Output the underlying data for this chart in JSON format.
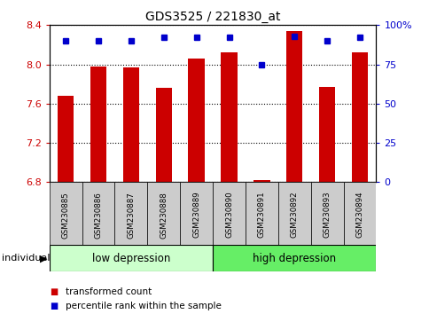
{
  "title": "GDS3525 / 221830_at",
  "samples": [
    "GSM230885",
    "GSM230886",
    "GSM230887",
    "GSM230888",
    "GSM230889",
    "GSM230890",
    "GSM230891",
    "GSM230892",
    "GSM230893",
    "GSM230894"
  ],
  "transformed_counts": [
    7.68,
    7.98,
    7.97,
    7.76,
    8.06,
    8.12,
    6.82,
    8.34,
    7.77,
    8.12
  ],
  "percentile_ranks": [
    90,
    90,
    90,
    92,
    92,
    92,
    75,
    93,
    90,
    92
  ],
  "y_min": 6.8,
  "y_max": 8.4,
  "y_ticks": [
    6.8,
    7.2,
    7.6,
    8.0,
    8.4
  ],
  "right_y_ticks": [
    0,
    25,
    50,
    75,
    100
  ],
  "right_y_tick_labels": [
    "0",
    "25",
    "50",
    "75",
    "100%"
  ],
  "bar_color": "#cc0000",
  "dot_color": "#0000cc",
  "group1_label": "low depression",
  "group2_label": "high depression",
  "group1_indices": [
    0,
    1,
    2,
    3,
    4
  ],
  "group2_indices": [
    5,
    6,
    7,
    8,
    9
  ],
  "group1_bg": "#ccffcc",
  "group2_bg": "#66ee66",
  "ticklabel_bg": "#cccccc",
  "legend_red_label": "transformed count",
  "legend_blue_label": "percentile rank within the sample",
  "individual_label": "individual",
  "bar_width": 0.5
}
